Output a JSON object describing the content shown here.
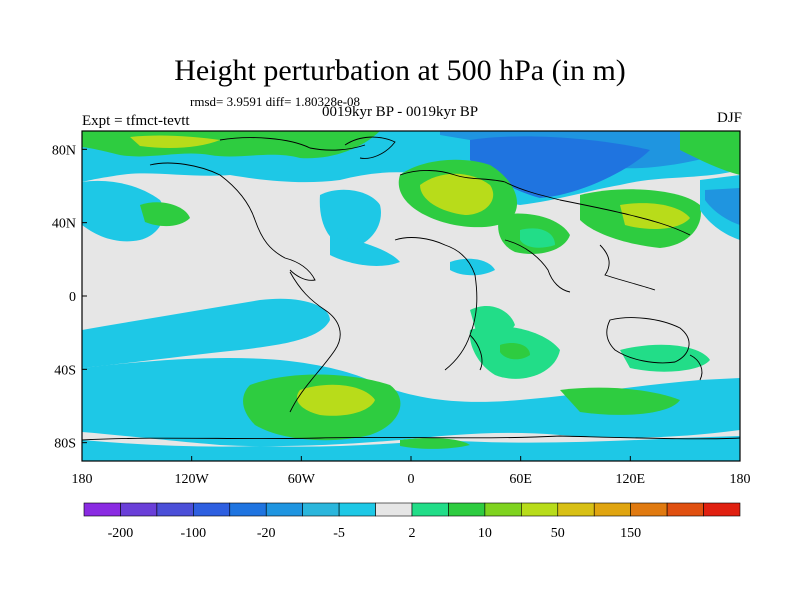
{
  "title": "Height perturbation at 500 hPa (in m)",
  "stats_line": "rmsd= 3.9591 diff= 1.80328e-08",
  "experiment_label": "Expt = tfmct-tevtt",
  "period_label": "0019kyr BP - 0019kyr BP",
  "season_label": "DJF",
  "lat_ticks": [
    {
      "label": "80N",
      "lat": 80
    },
    {
      "label": "40N",
      "lat": 40
    },
    {
      "label": "0",
      "lat": 0
    },
    {
      "label": "40S",
      "lat": -40
    },
    {
      "label": "80S",
      "lat": -80
    }
  ],
  "lon_ticks": [
    {
      "label": "180",
      "lon": -180
    },
    {
      "label": "120W",
      "lon": -120
    },
    {
      "label": "60W",
      "lon": -60
    },
    {
      "label": "0",
      "lon": 0
    },
    {
      "label": "60E",
      "lon": 60
    },
    {
      "label": "120E",
      "lon": 120
    },
    {
      "label": "180",
      "lon": 180
    }
  ],
  "colorbar": {
    "colors": [
      "#8a2be2",
      "#6a3fd8",
      "#4b4fd8",
      "#2e5fe0",
      "#1f74e0",
      "#1f95e0",
      "#2bb6dc",
      "#1ec8e6",
      "#e6e6e6",
      "#22dd88",
      "#2ecc40",
      "#7fd31f",
      "#b8dc1a",
      "#d8c015",
      "#e0a510",
      "#e07a10",
      "#e05010",
      "#e02010"
    ],
    "labels": [
      {
        "text": "-200",
        "boundary": 1
      },
      {
        "text": "-100",
        "boundary": 3
      },
      {
        "text": "-20",
        "boundary": 5
      },
      {
        "text": "-5",
        "boundary": 7
      },
      {
        "text": "2",
        "boundary": 9
      },
      {
        "text": "10",
        "boundary": 11
      },
      {
        "text": "50",
        "boundary": 13
      },
      {
        "text": "150",
        "boundary": 15
      }
    ]
  }
}
